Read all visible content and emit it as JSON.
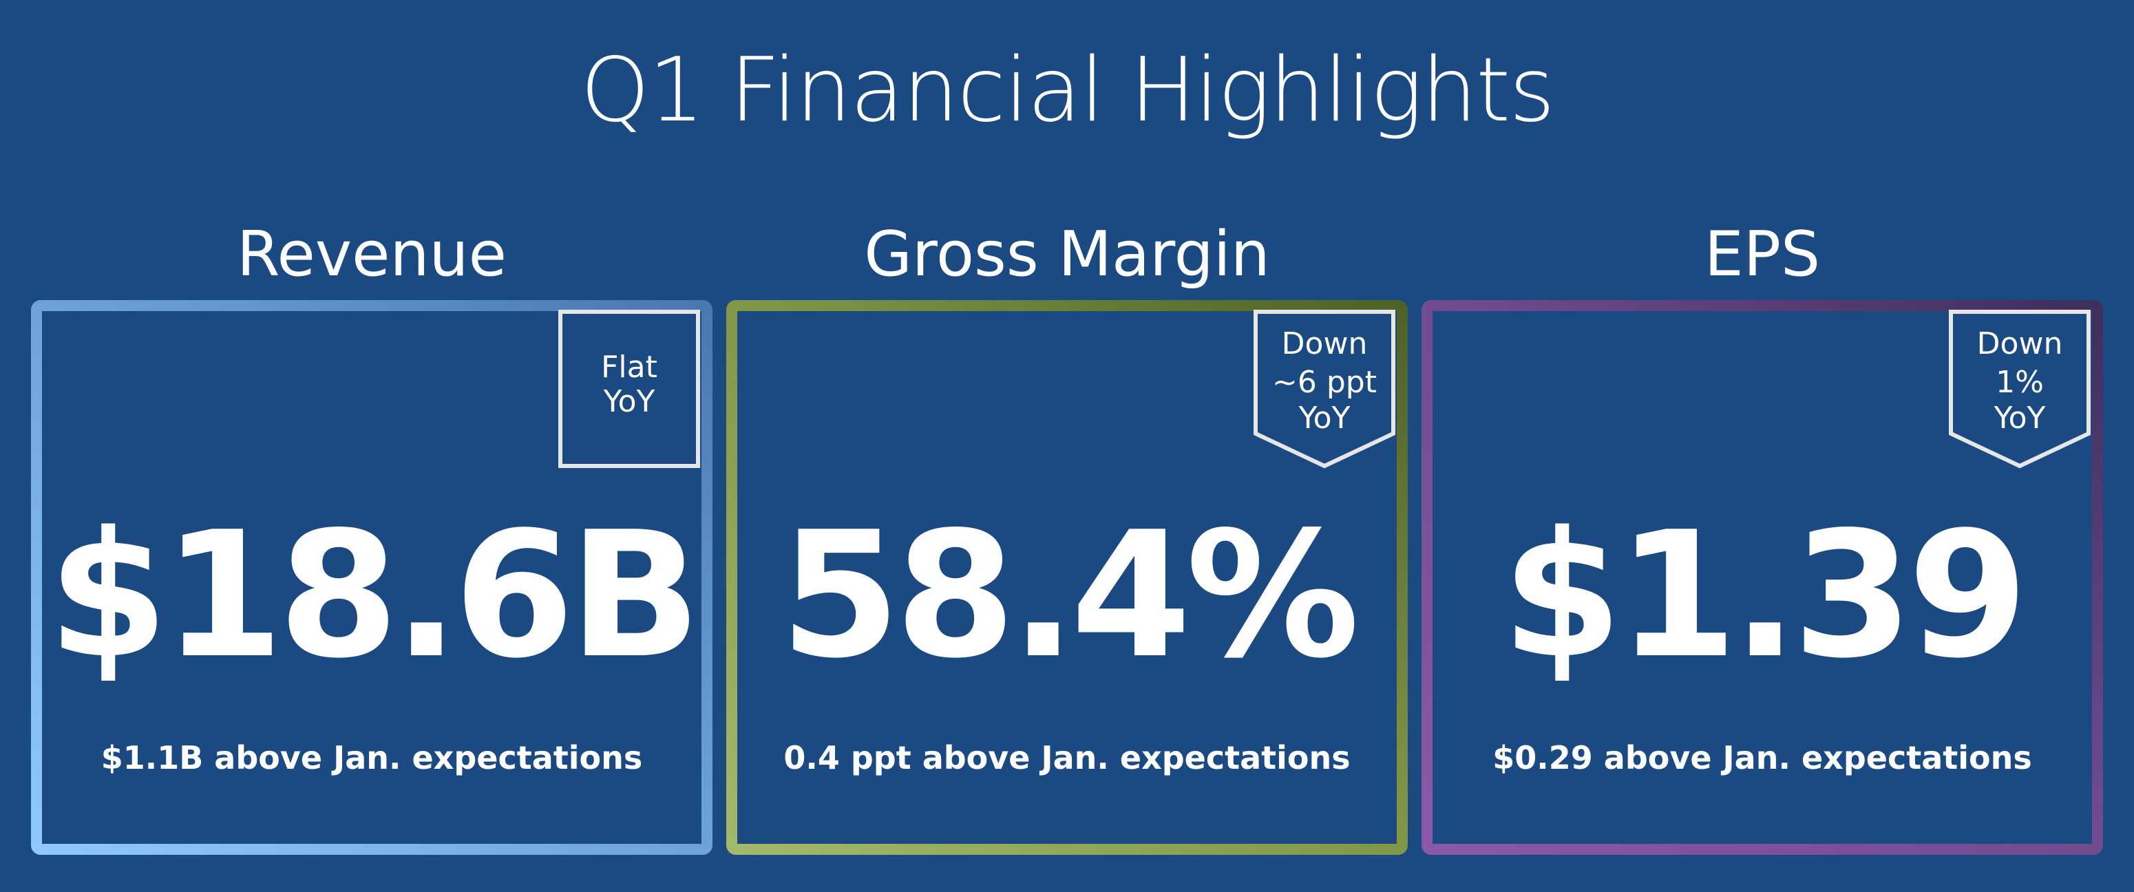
{
  "title": "Q1 Financial Highlights",
  "colors": {
    "background": "#1b4a82",
    "text": "#ffffff",
    "revenue_gradient": [
      "#8fc8ff",
      "#6a9fd6",
      "#4a78b0"
    ],
    "gross_margin_gradient": [
      "#a3b86a",
      "#7e9444",
      "#4f6128"
    ],
    "eps_gradient": [
      "#8a5aa6",
      "#6e4a8c",
      "#3e2f5c"
    ]
  },
  "cards": [
    {
      "heading": "Revenue",
      "badge": {
        "shape": "square",
        "lines": [
          "Flat",
          "YoY"
        ]
      },
      "value": "$18.6B",
      "note": "$1.1B above Jan. expectations"
    },
    {
      "heading": "Gross Margin",
      "badge": {
        "shape": "chevron",
        "lines": [
          "Down",
          "~6 ppt",
          "YoY"
        ]
      },
      "value": "58.4%",
      "note": "0.4 ppt above Jan. expectations"
    },
    {
      "heading": "EPS",
      "badge": {
        "shape": "chevron",
        "lines": [
          "Down",
          "1%",
          "YoY"
        ]
      },
      "value": "$1.39",
      "note": "$0.29 above Jan. expectations"
    }
  ]
}
